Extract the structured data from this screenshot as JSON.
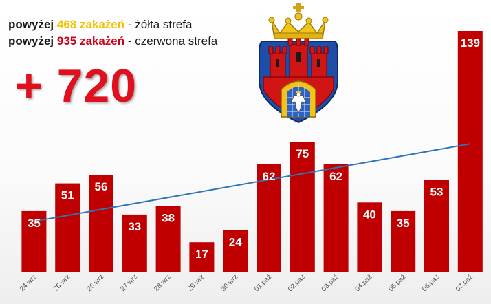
{
  "legend": {
    "prefix1": "powyżej",
    "value1": "468 zakażeń",
    "suffix1": " - żółta strefa",
    "prefix2": "powyżej",
    "value2": "935 zakażeń",
    "suffix2": " - czerwona strefa"
  },
  "headline": "+ 720",
  "emblem_icon": "krakow-coat-of-arms",
  "colors": {
    "bar": "#c00000",
    "trend": "#2e75b6",
    "headline": "#e0101e",
    "yellow_zone": "#f2c200",
    "red_zone": "#d0021b"
  },
  "chart_data": {
    "type": "bar",
    "categories": [
      "24.wrz",
      "25.wrz",
      "26.wrz",
      "27.wrz",
      "28.wrz",
      "29.wrz",
      "30.wrz",
      "01.paź",
      "02.paź",
      "03.paź",
      "04.paź",
      "05.paź",
      "06.paź",
      "07.paź"
    ],
    "values": [
      35,
      51,
      56,
      33,
      38,
      17,
      24,
      62,
      75,
      62,
      40,
      35,
      53,
      139
    ],
    "trendline": "linear",
    "data_labels": true,
    "grid": false,
    "ylim": [
      0,
      145
    ]
  }
}
